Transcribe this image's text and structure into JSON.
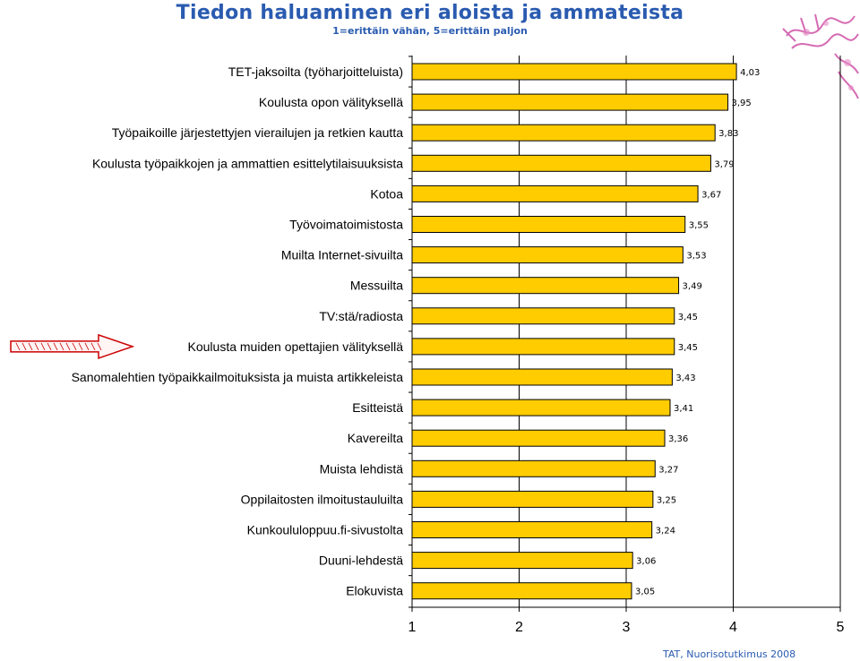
{
  "header": {
    "title": "Tiedon haluaminen eri aloista ja ammateista",
    "subtitle": "1=erittäin vähän, 5=erittäin paljon"
  },
  "footer": {
    "source": "TAT, Nuorisotutkimus 2008"
  },
  "colors": {
    "bar_fill": "#ffcc00",
    "bar_stroke": "#000000",
    "title": "#2a5bb0",
    "arrow": "#cc0000",
    "decoration": "#c83a9a"
  },
  "decorations": {
    "arrow": "red-outline-arrow-icon",
    "corner_art": "pink-corner-art"
  },
  "chart_data": {
    "type": "bar",
    "orientation": "horizontal",
    "title": "Tiedon haluaminen eri aloista ja ammateista",
    "subtitle": "1=erittäin vähän, 5=erittäin paljon",
    "categories": [
      "TET-jaksoilta (työharjoitteluista)",
      "Koulusta opon välityksellä",
      "Työpaikoille järjestettyjen vierailujen ja retkien kautta",
      "Koulusta työpaikkojen ja ammattien esittelytilaisuuksista",
      "Kotoa",
      "Työvoimatoimistosta",
      "Muilta Internet-sivuilta",
      "Messuilta",
      "TV:stä/radiosta",
      "Koulusta muiden opettajien välityksellä",
      "Sanomalehtien työpaikkailmoituksista ja muista artikkeleista",
      "Esitteistä",
      "Kavereilta",
      "Muista lehdistä",
      "Oppilaitosten ilmoitustauluilta",
      "Kunkoululoppuu.fi-sivustolta",
      "Duuni-lehdestä",
      "Elokuvista"
    ],
    "values": [
      4.03,
      3.95,
      3.83,
      3.79,
      3.67,
      3.55,
      3.53,
      3.49,
      3.45,
      3.45,
      3.43,
      3.41,
      3.36,
      3.27,
      3.25,
      3.24,
      3.06,
      3.05
    ],
    "value_labels": [
      "4,03",
      "3,95",
      "3,83",
      "3,79",
      "3,67",
      "3,55",
      "3,53",
      "3,49",
      "3,45",
      "3,45",
      "3,43",
      "3,41",
      "3,36",
      "3,27",
      "3,25",
      "3,24",
      "3,06",
      "3,05"
    ],
    "highlighted_category": "Koulusta muiden opettajien välityksellä",
    "xlim": [
      1,
      5
    ],
    "xticks": [
      "1",
      "2",
      "3",
      "4",
      "5"
    ],
    "grid": "vertical lines at each integer tick",
    "xlabel": "",
    "ylabel": ""
  }
}
